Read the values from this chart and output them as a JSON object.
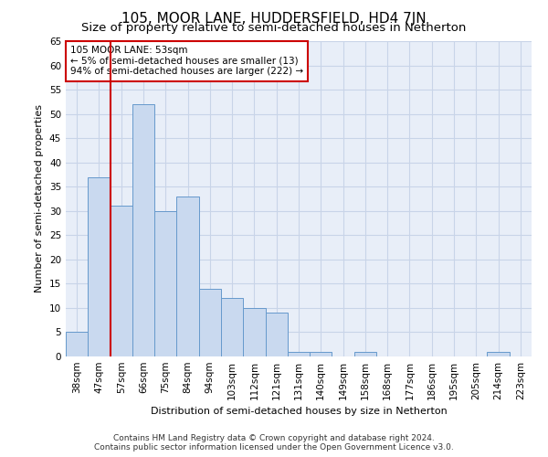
{
  "title": "105, MOOR LANE, HUDDERSFIELD, HD4 7JN",
  "subtitle": "Size of property relative to semi-detached houses in Netherton",
  "xlabel": "Distribution of semi-detached houses by size in Netherton",
  "ylabel": "Number of semi-detached properties",
  "categories": [
    "38sqm",
    "47sqm",
    "57sqm",
    "66sqm",
    "75sqm",
    "84sqm",
    "94sqm",
    "103sqm",
    "112sqm",
    "121sqm",
    "131sqm",
    "140sqm",
    "149sqm",
    "158sqm",
    "168sqm",
    "177sqm",
    "186sqm",
    "195sqm",
    "205sqm",
    "214sqm",
    "223sqm"
  ],
  "values": [
    5,
    37,
    31,
    52,
    30,
    33,
    14,
    12,
    10,
    9,
    1,
    1,
    0,
    1,
    0,
    0,
    0,
    0,
    0,
    1,
    0
  ],
  "bar_color": "#c9d9ef",
  "bar_edge_color": "#6699cc",
  "red_line_x": 1.5,
  "annotation_text": "105 MOOR LANE: 53sqm\n← 5% of semi-detached houses are smaller (13)\n94% of semi-detached houses are larger (222) →",
  "annotation_box_color": "#ffffff",
  "annotation_box_edge": "#cc0000",
  "red_line_color": "#cc0000",
  "ylim": [
    0,
    65
  ],
  "yticks": [
    0,
    5,
    10,
    15,
    20,
    25,
    30,
    35,
    40,
    45,
    50,
    55,
    60,
    65
  ],
  "grid_color": "#c8d4e8",
  "background_color": "#e8eef8",
  "footer_text": "Contains HM Land Registry data © Crown copyright and database right 2024.\nContains public sector information licensed under the Open Government Licence v3.0.",
  "title_fontsize": 11,
  "subtitle_fontsize": 9.5,
  "xlabel_fontsize": 8,
  "ylabel_fontsize": 8,
  "tick_fontsize": 7.5,
  "annotation_fontsize": 7.5,
  "footer_fontsize": 6.5
}
